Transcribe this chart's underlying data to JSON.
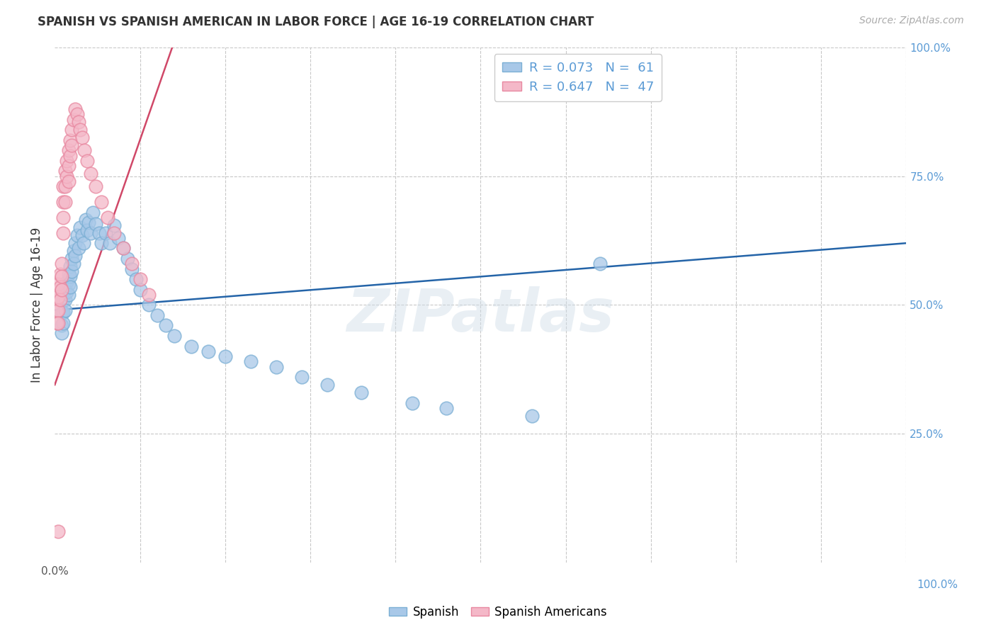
{
  "title": "SPANISH VS SPANISH AMERICAN IN LABOR FORCE | AGE 16-19 CORRELATION CHART",
  "source": "Source: ZipAtlas.com",
  "ylabel": "In Labor Force | Age 16-19",
  "xlim": [
    0,
    1.0
  ],
  "ylim": [
    0,
    1.0
  ],
  "blue_R": 0.073,
  "blue_N": 61,
  "pink_R": 0.647,
  "pink_N": 47,
  "blue_color": "#a8c8e8",
  "pink_color": "#f4b8c8",
  "blue_edge_color": "#7bafd4",
  "pink_edge_color": "#e888a0",
  "blue_line_color": "#2464a8",
  "pink_line_color": "#d04868",
  "watermark": "ZIPatlas",
  "blue_scatter_x": [
    0.008,
    0.008,
    0.008,
    0.01,
    0.01,
    0.01,
    0.012,
    0.012,
    0.012,
    0.014,
    0.014,
    0.016,
    0.016,
    0.016,
    0.018,
    0.018,
    0.018,
    0.02,
    0.02,
    0.022,
    0.022,
    0.024,
    0.024,
    0.026,
    0.028,
    0.03,
    0.032,
    0.034,
    0.036,
    0.038,
    0.04,
    0.042,
    0.045,
    0.048,
    0.052,
    0.055,
    0.06,
    0.065,
    0.07,
    0.075,
    0.08,
    0.085,
    0.09,
    0.095,
    0.1,
    0.11,
    0.12,
    0.13,
    0.14,
    0.16,
    0.18,
    0.2,
    0.23,
    0.26,
    0.29,
    0.32,
    0.36,
    0.42,
    0.46,
    0.56,
    0.64
  ],
  "blue_scatter_y": [
    0.485,
    0.46,
    0.445,
    0.51,
    0.485,
    0.465,
    0.53,
    0.51,
    0.49,
    0.545,
    0.525,
    0.56,
    0.54,
    0.52,
    0.575,
    0.555,
    0.535,
    0.59,
    0.565,
    0.605,
    0.58,
    0.62,
    0.595,
    0.635,
    0.61,
    0.65,
    0.635,
    0.62,
    0.665,
    0.645,
    0.66,
    0.64,
    0.68,
    0.658,
    0.64,
    0.62,
    0.64,
    0.62,
    0.655,
    0.63,
    0.61,
    0.59,
    0.57,
    0.55,
    0.53,
    0.5,
    0.48,
    0.46,
    0.44,
    0.42,
    0.41,
    0.4,
    0.39,
    0.38,
    0.36,
    0.345,
    0.33,
    0.31,
    0.3,
    0.285,
    0.58
  ],
  "pink_scatter_x": [
    0.002,
    0.002,
    0.002,
    0.004,
    0.004,
    0.004,
    0.004,
    0.006,
    0.006,
    0.006,
    0.008,
    0.008,
    0.008,
    0.01,
    0.01,
    0.01,
    0.01,
    0.012,
    0.012,
    0.012,
    0.014,
    0.014,
    0.016,
    0.016,
    0.016,
    0.018,
    0.018,
    0.02,
    0.02,
    0.022,
    0.024,
    0.026,
    0.028,
    0.03,
    0.032,
    0.035,
    0.038,
    0.042,
    0.048,
    0.055,
    0.062,
    0.07,
    0.08,
    0.09,
    0.1,
    0.11,
    0.004
  ],
  "pink_scatter_y": [
    0.51,
    0.488,
    0.465,
    0.54,
    0.515,
    0.49,
    0.465,
    0.56,
    0.535,
    0.51,
    0.58,
    0.555,
    0.53,
    0.73,
    0.7,
    0.67,
    0.64,
    0.76,
    0.73,
    0.7,
    0.78,
    0.75,
    0.8,
    0.77,
    0.74,
    0.82,
    0.79,
    0.84,
    0.81,
    0.86,
    0.88,
    0.87,
    0.855,
    0.84,
    0.825,
    0.8,
    0.78,
    0.755,
    0.73,
    0.7,
    0.67,
    0.64,
    0.61,
    0.58,
    0.55,
    0.52,
    0.06
  ],
  "blue_trendline_x": [
    0.0,
    1.0
  ],
  "blue_trendline_y": [
    0.49,
    0.62
  ],
  "pink_trendline_x": [
    0.0,
    0.14
  ],
  "pink_trendline_y": [
    0.345,
    1.01
  ],
  "background_color": "#ffffff",
  "grid_color": "#c8c8c8",
  "legend_blue_text": "R = 0.073   N =  61",
  "legend_pink_text": "R = 0.647   N =  47"
}
